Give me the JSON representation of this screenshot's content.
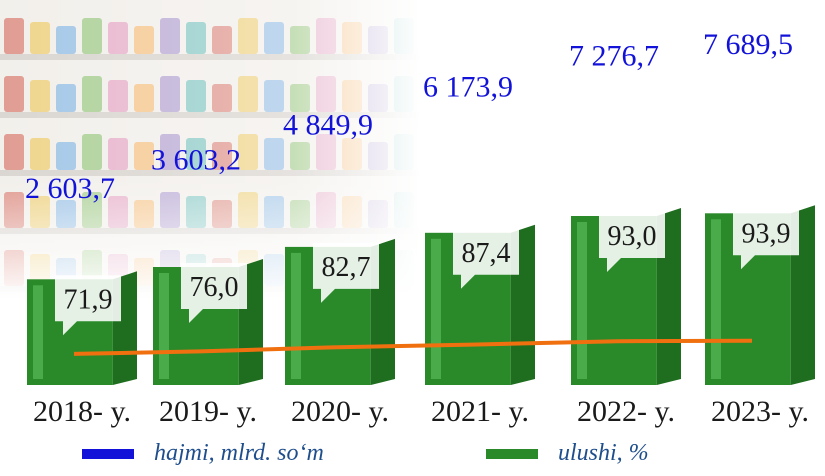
{
  "colors": {
    "volume": "#1212d9",
    "share_bar": "#2a8a2a",
    "share_line": "#f07010",
    "year_text": "#1a1a1a",
    "legend_text": "#1f4e8c"
  },
  "chart_data": {
    "type": "bar",
    "categories": [
      "2018- y.",
      "2019- y.",
      "2020- y.",
      "2021- y.",
      "2022- y.",
      "2023- y."
    ],
    "series": [
      {
        "name": "hajmi, mlrd. so‘m",
        "values": [
          2603.7,
          3603.2,
          4849.9,
          6173.9,
          7276.7,
          7689.5
        ],
        "labels": [
          "2 603,7",
          "3 603,2",
          "4 849,9",
          "6 173,9",
          "7 276,7",
          "7 689,5"
        ]
      },
      {
        "name": "ulushi, %",
        "values": [
          71.9,
          76.0,
          82.7,
          87.4,
          93.0,
          93.9
        ],
        "labels": [
          "71,9",
          "76,0",
          "82,7",
          "87,4",
          "93,0",
          "93,9"
        ]
      }
    ],
    "legend": {
      "volume_label": "hajmi, mlrd. so‘m",
      "share_label": "ulushi, %",
      "placement": "bottom"
    }
  }
}
